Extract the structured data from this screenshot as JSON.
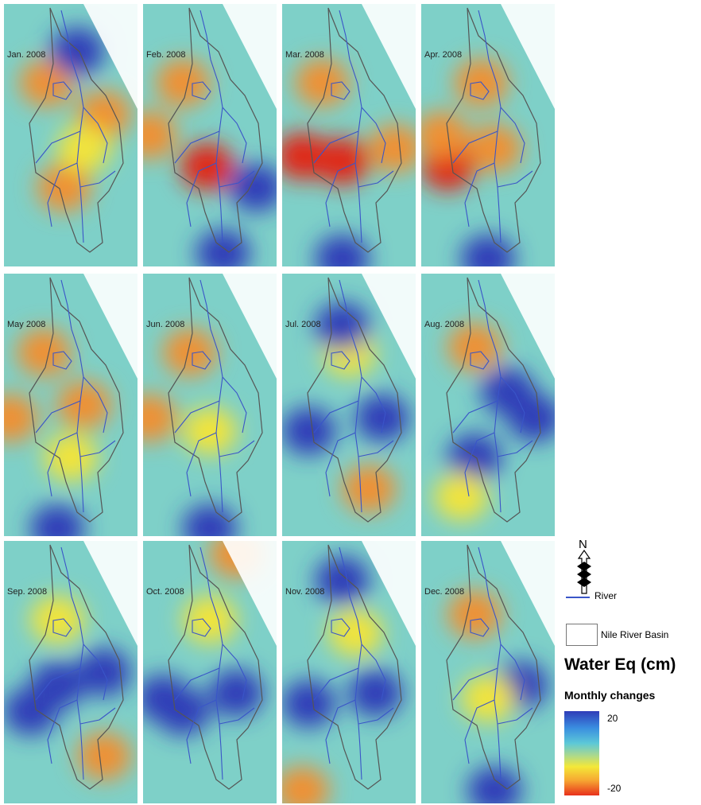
{
  "panels": [
    {
      "label": "Jan. 2008",
      "blobs": [
        [
          "o",
          0.32,
          0.3
        ],
        [
          "o",
          0.45,
          0.7
        ],
        [
          "b",
          0.55,
          0.18
        ],
        [
          "o",
          0.75,
          0.42
        ],
        [
          "y",
          0.6,
          0.55
        ]
      ]
    },
    {
      "label": "Feb. 2008",
      "blobs": [
        [
          "o",
          0.3,
          0.3
        ],
        [
          "r",
          0.48,
          0.62
        ],
        [
          "o",
          0.05,
          0.5
        ],
        [
          "b",
          0.6,
          0.95
        ],
        [
          "b",
          0.85,
          0.7
        ]
      ]
    },
    {
      "label": "Mar. 2008",
      "blobs": [
        [
          "r",
          0.15,
          0.58
        ],
        [
          "r",
          0.45,
          0.6
        ],
        [
          "o",
          0.3,
          0.3
        ],
        [
          "b",
          0.45,
          0.97
        ],
        [
          "o",
          0.85,
          0.55
        ]
      ]
    },
    {
      "label": "Apr. 2008",
      "blobs": [
        [
          "r",
          0.2,
          0.62
        ],
        [
          "o",
          0.55,
          0.55
        ],
        [
          "o",
          0.45,
          0.3
        ],
        [
          "b",
          0.5,
          0.97
        ],
        [
          "o",
          0.15,
          0.5
        ]
      ]
    },
    {
      "label": "May 2008",
      "blobs": [
        [
          "o",
          0.3,
          0.3
        ],
        [
          "o",
          0.6,
          0.5
        ],
        [
          "o",
          0.05,
          0.55
        ],
        [
          "b",
          0.4,
          0.97
        ],
        [
          "y",
          0.5,
          0.7
        ]
      ]
    },
    {
      "label": "Jun. 2008",
      "blobs": [
        [
          "o",
          0.35,
          0.3
        ],
        [
          "o",
          0.05,
          0.55
        ],
        [
          "b",
          0.5,
          0.97
        ],
        [
          "y",
          0.5,
          0.6
        ]
      ]
    },
    {
      "label": "Jul. 2008",
      "blobs": [
        [
          "b",
          0.75,
          0.55
        ],
        [
          "b",
          0.2,
          0.6
        ],
        [
          "o",
          0.65,
          0.82
        ],
        [
          "y",
          0.5,
          0.3
        ],
        [
          "b",
          0.45,
          0.2
        ]
      ]
    },
    {
      "label": "Aug. 2008",
      "blobs": [
        [
          "b",
          0.85,
          0.55
        ],
        [
          "b",
          0.4,
          0.7
        ],
        [
          "b",
          0.65,
          0.45
        ],
        [
          "o",
          0.4,
          0.28
        ],
        [
          "y",
          0.3,
          0.85
        ]
      ]
    },
    {
      "label": "Sep. 2008",
      "blobs": [
        [
          "b",
          0.2,
          0.65
        ],
        [
          "b",
          0.75,
          0.5
        ],
        [
          "b",
          0.4,
          0.55
        ],
        [
          "o",
          0.75,
          0.82
        ],
        [
          "y",
          0.4,
          0.3
        ]
      ]
    },
    {
      "label": "Oct. 2008",
      "blobs": [
        [
          "b",
          0.3,
          0.65
        ],
        [
          "b",
          0.7,
          0.58
        ],
        [
          "b",
          0.15,
          0.6
        ],
        [
          "o",
          0.7,
          0.05
        ],
        [
          "y",
          0.5,
          0.3
        ]
      ]
    },
    {
      "label": "Nov. 2008",
      "blobs": [
        [
          "b",
          0.2,
          0.62
        ],
        [
          "b",
          0.7,
          0.58
        ],
        [
          "b",
          0.45,
          0.15
        ],
        [
          "o",
          0.15,
          0.95
        ],
        [
          "y",
          0.55,
          0.35
        ]
      ]
    },
    {
      "label": "Dec. 2008",
      "blobs": [
        [
          "o",
          0.4,
          0.28
        ],
        [
          "b",
          0.75,
          0.55
        ],
        [
          "y",
          0.5,
          0.6
        ],
        [
          "b",
          0.55,
          0.95
        ]
      ]
    }
  ],
  "legend": {
    "north": "N",
    "river": "River",
    "basin": "Nile River Basin",
    "title": "Water Eq (cm)",
    "subtitle": "Monthly changes",
    "max": "20",
    "min": "-20"
  },
  "colors": {
    "river": "#3a55c8",
    "basin_outline": "#555555",
    "background": "#7ed0c8",
    "blue": "#2e3cb8",
    "yellow": "#f2e43a",
    "orange": "#f09030",
    "red": "#e02818"
  }
}
